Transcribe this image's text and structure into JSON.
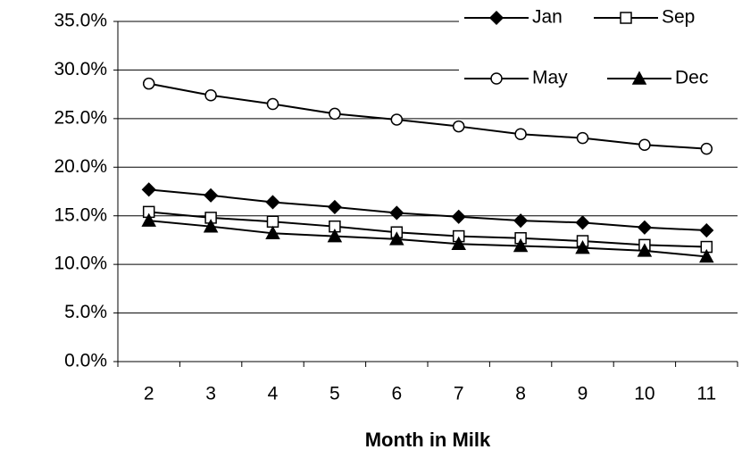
{
  "chart_data": {
    "type": "line",
    "x_label": "Month in Milk",
    "categories": [
      "2",
      "3",
      "4",
      "5",
      "6",
      "7",
      "8",
      "9",
      "10",
      "11"
    ],
    "series": [
      {
        "name": "Jan",
        "color": "#000000",
        "marker": "diamond",
        "values": [
          17.7,
          17.1,
          16.4,
          15.9,
          15.3,
          14.9,
          14.5,
          14.3,
          13.8,
          13.5
        ]
      },
      {
        "name": "Sep",
        "color": "#000000",
        "marker": "square-open",
        "values": [
          15.4,
          14.8,
          14.4,
          13.9,
          13.3,
          12.9,
          12.7,
          12.4,
          12.0,
          11.8
        ]
      },
      {
        "name": "May",
        "color": "#000000",
        "marker": "circle-open",
        "values": [
          28.6,
          27.4,
          26.5,
          25.5,
          24.9,
          24.2,
          23.4,
          23.0,
          22.3,
          21.9
        ]
      },
      {
        "name": "Dec",
        "color": "#000000",
        "marker": "triangle",
        "values": [
          14.5,
          13.9,
          13.2,
          12.9,
          12.6,
          12.1,
          11.9,
          11.7,
          11.4,
          10.8
        ]
      }
    ],
    "ylim": [
      0,
      35
    ],
    "yticks": [
      {
        "value": 0,
        "label": "0.0%"
      },
      {
        "value": 5,
        "label": "5.0%"
      },
      {
        "value": 10,
        "label": "10.0%"
      },
      {
        "value": 15,
        "label": "15.0%"
      },
      {
        "value": 20,
        "label": "20.0%"
      },
      {
        "value": 25,
        "label": "25.0%"
      },
      {
        "value": 30,
        "label": "30.0%"
      },
      {
        "value": 35,
        "label": "35.0%"
      }
    ],
    "grid": true,
    "legend": "top-right"
  }
}
